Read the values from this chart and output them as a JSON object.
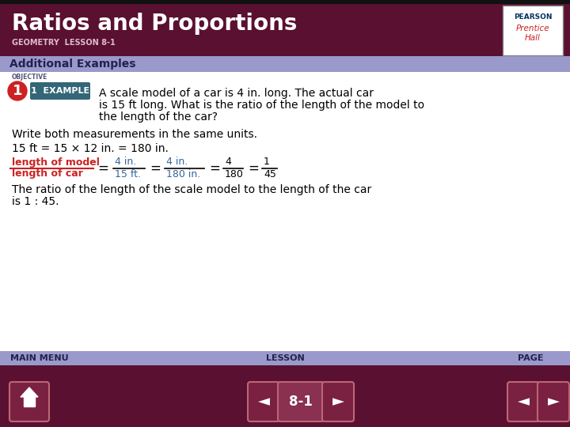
{
  "title": "Ratios and Proportions",
  "subtitle": "GEOMETRY  LESSON 8-1",
  "section_label": "Additional Examples",
  "header_bg": "#5a1030",
  "section_bg": "#9999cc",
  "body_bg": "#ffffff",
  "footer_bg": "#5a1030",
  "footer_label_bg": "#9999cc",
  "objective_label": "OBJECTIVE",
  "example_badge_text": "1  EXAMPLE",
  "obj_bg": "#cc2222",
  "ratio_label_num": "length of model",
  "ratio_label_den": "length of car",
  "ratio_color": "#cc2222",
  "fraction_color": "#336699",
  "footer_main_menu": "MAIN MENU",
  "footer_lesson": "LESSON",
  "footer_page": "PAGE",
  "footer_lesson_num": "8-1",
  "step1": "Write both measurements in the same units.",
  "step2": "15 ft = 15 × 12 in. = 180 in.",
  "conclusion1": "The ratio of the length of the scale model to the length of the car",
  "conclusion2": "is 1 : 45."
}
